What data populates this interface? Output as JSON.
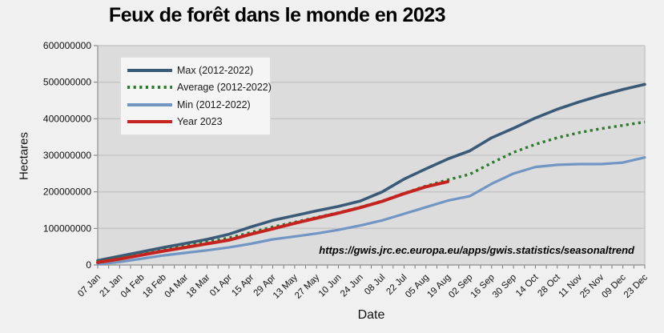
{
  "chart": {
    "title": "Feux de forêt dans le monde en 2023",
    "ylabel": "Hectares",
    "xlabel": "Date",
    "annotation": "https://gwis.jrc.ec.europa.eu/apps/gwis.statistics/seasonaltrend"
  },
  "chart_data": {
    "type": "line",
    "title": "Feux de forêt dans le monde en 2023",
    "xlabel": "Date",
    "ylabel": "Hectares",
    "ylim": [
      0,
      600000000
    ],
    "yticks": [
      0,
      100000000,
      200000000,
      300000000,
      400000000,
      500000000,
      600000000
    ],
    "grid": true,
    "legend_position": "upper-left",
    "categories": [
      "07 Jan",
      "21 Jan",
      "04 Feb",
      "18 Feb",
      "04 Mar",
      "18 Mar",
      "01 Apr",
      "15 Apr",
      "29 Apr",
      "13 May",
      "27 May",
      "10 Jun",
      "24 Jun",
      "08 Jul",
      "22 Jul",
      "05 Aug",
      "19 Aug",
      "02 Sep",
      "16 Sep",
      "30 Sep",
      "14 Oct",
      "28 Oct",
      "11 Nov",
      "25 Nov",
      "09 Dec",
      "23 Dec"
    ],
    "series": [
      {
        "name": "Max (2012-2022)",
        "style": "solid",
        "color": "#3a5a78",
        "values": [
          12000000,
          24000000,
          36000000,
          48000000,
          59000000,
          70000000,
          84000000,
          104000000,
          122000000,
          135000000,
          148000000,
          160000000,
          175000000,
          200000000,
          235000000,
          263000000,
          290000000,
          312000000,
          348000000,
          374000000,
          402000000,
          426000000,
          446000000,
          464000000,
          480000000,
          494000000
        ]
      },
      {
        "name": "Average (2012-2022)",
        "style": "dotted",
        "color": "#2c7a2c",
        "values": [
          9000000,
          19000000,
          30000000,
          41000000,
          52000000,
          63000000,
          74000000,
          89000000,
          104000000,
          117000000,
          130000000,
          143000000,
          158000000,
          175000000,
          196000000,
          216000000,
          233000000,
          248000000,
          279000000,
          308000000,
          330000000,
          348000000,
          362000000,
          373000000,
          382000000,
          391000000
        ]
      },
      {
        "name": "Min (2012-2022)",
        "style": "solid",
        "color": "#7296c4",
        "values": [
          2000000,
          8000000,
          17000000,
          26000000,
          33000000,
          40000000,
          48000000,
          58000000,
          70000000,
          78000000,
          86000000,
          96000000,
          108000000,
          122000000,
          140000000,
          158000000,
          176000000,
          188000000,
          222000000,
          250000000,
          268000000,
          274000000,
          276000000,
          276000000,
          280000000,
          294000000
        ]
      },
      {
        "name": "Year 2023",
        "style": "solid",
        "color": "#c42320",
        "values": [
          7000000,
          16000000,
          27000000,
          38000000,
          48000000,
          58000000,
          68000000,
          84000000,
          99000000,
          114000000,
          128000000,
          142000000,
          157000000,
          174000000,
          195000000,
          214000000,
          228000000
        ]
      }
    ]
  },
  "colors": {
    "figure_bg": "#f0f0f0",
    "plot_bg": "#dcdcdc",
    "grid": "#c6c6c6",
    "spine": "#9a9a9a",
    "tick": "#777777",
    "text": "#111111",
    "legend_bg": "#f5f5f5",
    "legend_border": "#dedede"
  }
}
